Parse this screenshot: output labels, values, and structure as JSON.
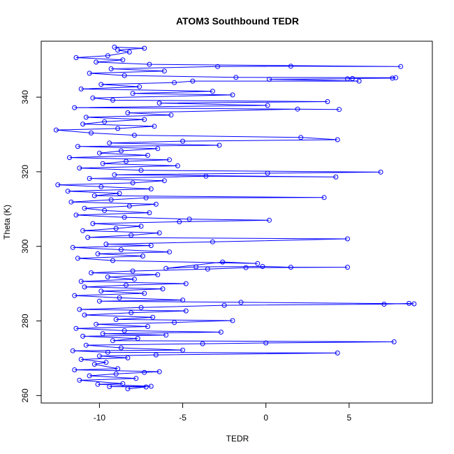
{
  "chart_data": {
    "type": "line",
    "title": "ATOM3 Southbound TEDR",
    "xlabel": "TEDR",
    "ylabel": "Theta (K)",
    "xlim": [
      -13.5,
      10
    ],
    "ylim": [
      258,
      355
    ],
    "xticks": [
      -10,
      -5,
      0,
      5
    ],
    "yticks": [
      260,
      280,
      300,
      320,
      340
    ],
    "grid": false,
    "legend": "none",
    "marker": "open-circle",
    "colors": {
      "series": "#0000ff",
      "axes": "#000000"
    },
    "series": [
      {
        "points": [
          [
            -8.3,
            261.8
          ],
          [
            -7.2,
            262.3
          ],
          [
            -9.4,
            262.4
          ],
          [
            -6.9,
            262.5
          ],
          [
            -10.1,
            263.0
          ],
          [
            -8.6,
            263.2
          ],
          [
            -11.2,
            264.1
          ],
          [
            -7.8,
            264.6
          ],
          [
            -10.6,
            265.3
          ],
          [
            -9.0,
            265.8
          ],
          [
            -7.3,
            266.2
          ],
          [
            -6.4,
            266.4
          ],
          [
            -11.5,
            266.9
          ],
          [
            -8.9,
            267.2
          ],
          [
            -10.3,
            268.4
          ],
          [
            -9.6,
            268.9
          ],
          [
            -11.1,
            269.7
          ],
          [
            -8.3,
            270.1
          ],
          [
            -10.0,
            270.6
          ],
          [
            -6.6,
            270.9
          ],
          [
            4.3,
            271.4
          ],
          [
            -9.5,
            271.6
          ],
          [
            -11.6,
            272.0
          ],
          [
            -5.0,
            272.2
          ],
          [
            -8.7,
            272.8
          ],
          [
            -10.8,
            273.5
          ],
          [
            -3.8,
            273.9
          ],
          [
            0.0,
            274.1
          ],
          [
            7.7,
            274.4
          ],
          [
            -9.2,
            274.7
          ],
          [
            -7.7,
            275.3
          ],
          [
            -11.0,
            275.9
          ],
          [
            -6.0,
            276.2
          ],
          [
            -9.8,
            276.6
          ],
          [
            -2.7,
            277.0
          ],
          [
            -8.5,
            277.4
          ],
          [
            -11.4,
            278.0
          ],
          [
            -7.1,
            278.5
          ],
          [
            -10.2,
            279.1
          ],
          [
            -5.5,
            279.6
          ],
          [
            -2.0,
            280.1
          ],
          [
            -9.0,
            280.4
          ],
          [
            -6.8,
            281.0
          ],
          [
            -10.9,
            281.6
          ],
          [
            -8.1,
            282.2
          ],
          [
            -4.8,
            282.7
          ],
          [
            -11.2,
            283.1
          ],
          [
            -7.5,
            283.6
          ],
          [
            -2.5,
            284.2
          ],
          [
            7.1,
            284.5
          ],
          [
            8.6,
            284.7
          ],
          [
            8.9,
            284.6
          ],
          [
            -1.5,
            285.0
          ],
          [
            -10.0,
            285.3
          ],
          [
            -5.0,
            285.6
          ],
          [
            -8.8,
            286.2
          ],
          [
            -11.5,
            286.8
          ],
          [
            -7.3,
            287.4
          ],
          [
            -9.9,
            288.0
          ],
          [
            -6.2,
            288.6
          ],
          [
            -10.9,
            289.1
          ],
          [
            -8.4,
            289.6
          ],
          [
            -4.8,
            290.0
          ],
          [
            -11.1,
            290.6
          ],
          [
            -7.9,
            291.2
          ],
          [
            -9.5,
            291.8
          ],
          [
            -6.5,
            292.4
          ],
          [
            -10.5,
            292.9
          ],
          [
            -8.0,
            293.4
          ],
          [
            -3.5,
            293.9
          ],
          [
            -1.2,
            294.3
          ],
          [
            4.9,
            294.4
          ],
          [
            1.5,
            294.4
          ],
          [
            -0.2,
            294.6
          ],
          [
            -4.2,
            294.5
          ],
          [
            -6.0,
            294.1
          ],
          [
            -2.6,
            295.8
          ],
          [
            -0.5,
            295.4
          ],
          [
            -9.2,
            296.2
          ],
          [
            -11.3,
            296.8
          ],
          [
            -7.4,
            297.4
          ],
          [
            -10.1,
            298.0
          ],
          [
            -5.8,
            298.5
          ],
          [
            -8.7,
            299.1
          ],
          [
            -11.6,
            299.7
          ],
          [
            -6.9,
            300.2
          ],
          [
            -9.6,
            300.6
          ],
          [
            -3.2,
            301.2
          ],
          [
            4.9,
            302.0
          ],
          [
            -10.7,
            302.4
          ],
          [
            -8.1,
            303.0
          ],
          [
            -6.4,
            303.6
          ],
          [
            -11.0,
            304.2
          ],
          [
            -9.0,
            304.8
          ],
          [
            -7.5,
            305.4
          ],
          [
            -10.4,
            306.1
          ],
          [
            -5.2,
            306.6
          ],
          [
            0.2,
            307.0
          ],
          [
            -4.6,
            307.3
          ],
          [
            -8.5,
            307.8
          ],
          [
            -11.4,
            308.4
          ],
          [
            -7.0,
            309.0
          ],
          [
            -9.7,
            309.6
          ],
          [
            -10.9,
            310.2
          ],
          [
            -8.2,
            310.8
          ],
          [
            -6.6,
            311.3
          ],
          [
            -11.7,
            311.9
          ],
          [
            -9.3,
            312.5
          ],
          [
            -7.2,
            313.0
          ],
          [
            3.5,
            313.1
          ],
          [
            -10.3,
            313.6
          ],
          [
            -8.8,
            314.2
          ],
          [
            -11.9,
            314.8
          ],
          [
            -6.9,
            315.4
          ],
          [
            -9.9,
            316.0
          ],
          [
            -12.5,
            316.5
          ],
          [
            -8.0,
            317.0
          ],
          [
            -6.1,
            317.6
          ],
          [
            -10.6,
            318.2
          ],
          [
            -3.6,
            318.8
          ],
          [
            4.2,
            318.6
          ],
          [
            -9.1,
            319.2
          ],
          [
            0.1,
            319.6
          ],
          [
            6.9,
            319.9
          ],
          [
            -7.5,
            320.4
          ],
          [
            -11.2,
            321.0
          ],
          [
            -5.3,
            321.6
          ],
          [
            -9.8,
            322.2
          ],
          [
            -8.4,
            322.8
          ],
          [
            -5.8,
            323.2
          ],
          [
            -11.8,
            323.8
          ],
          [
            -7.1,
            324.4
          ],
          [
            -10.0,
            325.0
          ],
          [
            -8.7,
            325.6
          ],
          [
            -6.5,
            326.2
          ],
          [
            -11.3,
            326.8
          ],
          [
            -2.8,
            327.1
          ],
          [
            -9.4,
            327.7
          ],
          [
            -5.0,
            328.2
          ],
          [
            4.3,
            328.6
          ],
          [
            2.1,
            329.2
          ],
          [
            -7.9,
            329.8
          ],
          [
            -10.5,
            330.4
          ],
          [
            -12.6,
            331.2
          ],
          [
            -8.9,
            331.6
          ],
          [
            -6.7,
            332.2
          ],
          [
            -11.0,
            332.8
          ],
          [
            -9.7,
            333.4
          ],
          [
            -7.3,
            334.0
          ],
          [
            -10.8,
            334.6
          ],
          [
            -5.7,
            335.2
          ],
          [
            -8.3,
            335.8
          ],
          [
            1.9,
            336.8
          ],
          [
            4.4,
            336.7
          ],
          [
            -11.5,
            337.2
          ],
          [
            0.1,
            337.8
          ],
          [
            -6.4,
            338.4
          ],
          [
            3.7,
            338.8
          ],
          [
            -9.2,
            339.2
          ],
          [
            -10.4,
            339.8
          ],
          [
            -2.0,
            340.6
          ],
          [
            -8.0,
            341.0
          ],
          [
            -3.2,
            341.6
          ],
          [
            -11.1,
            342.2
          ],
          [
            -7.6,
            342.8
          ],
          [
            -9.9,
            343.4
          ],
          [
            -5.5,
            343.9
          ],
          [
            -4.4,
            344.3
          ],
          [
            5.6,
            344.3
          ],
          [
            0.2,
            344.8
          ],
          [
            4.9,
            344.9
          ],
          [
            5.2,
            345.0
          ],
          [
            7.6,
            345.1
          ],
          [
            7.8,
            345.2
          ],
          [
            -1.8,
            345.3
          ],
          [
            -8.5,
            345.8
          ],
          [
            -10.6,
            346.4
          ],
          [
            -6.1,
            347.0
          ],
          [
            -9.3,
            347.6
          ],
          [
            -2.9,
            348.2
          ],
          [
            1.5,
            348.3
          ],
          [
            8.1,
            348.2
          ],
          [
            -7.0,
            348.8
          ],
          [
            -10.2,
            349.4
          ],
          [
            -8.6,
            350.0
          ],
          [
            -11.4,
            350.6
          ],
          [
            -9.5,
            351.1
          ],
          [
            -8.2,
            352.1
          ],
          [
            -8.9,
            352.6
          ],
          [
            -7.3,
            353.1
          ],
          [
            -9.1,
            353.4
          ]
        ]
      }
    ]
  }
}
